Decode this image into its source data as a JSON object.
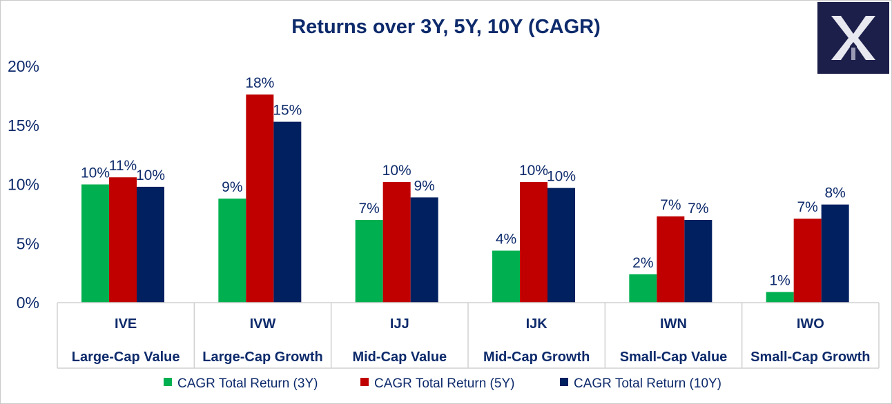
{
  "chart_data": {
    "type": "bar",
    "title": "Returns over 3Y, 5Y, 10Y (CAGR)",
    "xlabel": "",
    "ylabel": "",
    "ylim": [
      0,
      20
    ],
    "yticks": [
      0,
      5,
      10,
      15,
      20
    ],
    "ytick_labels": [
      "0%",
      "5%",
      "10%",
      "15%",
      "20%"
    ],
    "categories": [
      {
        "ticker": "IVE",
        "name": "Large-Cap Value"
      },
      {
        "ticker": "IVW",
        "name": "Large-Cap Growth"
      },
      {
        "ticker": "IJJ",
        "name": "Mid-Cap Value"
      },
      {
        "ticker": "IJK",
        "name": "Mid-Cap Growth"
      },
      {
        "ticker": "IWN",
        "name": "Small-Cap Value"
      },
      {
        "ticker": "IWO",
        "name": "Small-Cap Growth"
      }
    ],
    "series": [
      {
        "name": "CAGR Total Return (3Y)",
        "color": "#00b050",
        "values": [
          10.0,
          8.8,
          7.0,
          4.4,
          2.4,
          0.9
        ],
        "labels": [
          "10%",
          "9%",
          "7%",
          "4%",
          "2%",
          "1%"
        ]
      },
      {
        "name": "CAGR Total Return (5Y)",
        "color": "#c00000",
        "values": [
          10.6,
          17.6,
          10.2,
          10.2,
          7.3,
          7.1
        ],
        "labels": [
          "11%",
          "18%",
          "10%",
          "10%",
          "7%",
          "7%"
        ]
      },
      {
        "name": "CAGR Total Return (10Y)",
        "color": "#002060",
        "values": [
          9.8,
          15.3,
          8.9,
          9.7,
          7.0,
          8.3
        ],
        "labels": [
          "10%",
          "15%",
          "9%",
          "10%",
          "7%",
          "8%"
        ]
      }
    ],
    "legend_position": "bottom",
    "grid": false
  },
  "colors": {
    "text": "#0d2a6b",
    "axis": "#d0d0d0",
    "logo_bg": "#1c1f4a",
    "logo_mark": "#e8e8f0"
  },
  "logo": {
    "icon": "x-logo-icon"
  }
}
